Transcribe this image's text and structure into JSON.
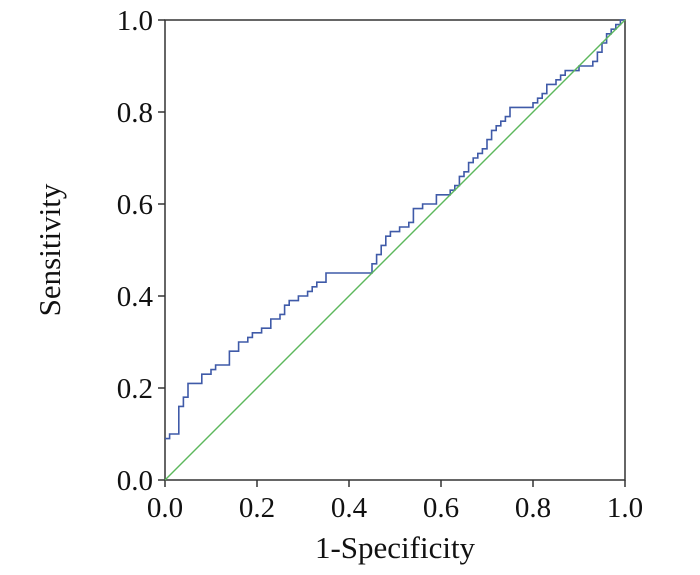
{
  "chart_data": {
    "type": "line",
    "title": "",
    "xlabel": "1-Specificity",
    "ylabel": "Sensitivity",
    "xlim": [
      0,
      1
    ],
    "ylim": [
      0,
      1
    ],
    "xticks": [
      "0.0",
      "0.2",
      "0.4",
      "0.6",
      "0.8",
      "1.0"
    ],
    "yticks": [
      "0.0",
      "0.2",
      "0.4",
      "0.6",
      "0.8",
      "1.0"
    ],
    "grid": false,
    "legend": "none",
    "series": [
      {
        "color": "#3f5aa8",
        "step": true,
        "points": [
          [
            0.0,
            0.09
          ],
          [
            0.01,
            0.09
          ],
          [
            0.01,
            0.1
          ],
          [
            0.03,
            0.1
          ],
          [
            0.03,
            0.16
          ],
          [
            0.04,
            0.18
          ],
          [
            0.05,
            0.21
          ],
          [
            0.07,
            0.21
          ],
          [
            0.08,
            0.23
          ],
          [
            0.1,
            0.24
          ],
          [
            0.11,
            0.25
          ],
          [
            0.13,
            0.25
          ],
          [
            0.14,
            0.28
          ],
          [
            0.16,
            0.3
          ],
          [
            0.18,
            0.31
          ],
          [
            0.19,
            0.32
          ],
          [
            0.21,
            0.33
          ],
          [
            0.23,
            0.35
          ],
          [
            0.25,
            0.36
          ],
          [
            0.26,
            0.38
          ],
          [
            0.27,
            0.39
          ],
          [
            0.29,
            0.4
          ],
          [
            0.31,
            0.41
          ],
          [
            0.32,
            0.42
          ],
          [
            0.33,
            0.43
          ],
          [
            0.35,
            0.45
          ],
          [
            0.43,
            0.45
          ],
          [
            0.45,
            0.47
          ],
          [
            0.46,
            0.49
          ],
          [
            0.47,
            0.51
          ],
          [
            0.48,
            0.53
          ],
          [
            0.49,
            0.54
          ],
          [
            0.51,
            0.55
          ],
          [
            0.53,
            0.56
          ],
          [
            0.54,
            0.59
          ],
          [
            0.56,
            0.6
          ],
          [
            0.58,
            0.6
          ],
          [
            0.59,
            0.62
          ],
          [
            0.61,
            0.62
          ],
          [
            0.62,
            0.63
          ],
          [
            0.63,
            0.64
          ],
          [
            0.64,
            0.66
          ],
          [
            0.65,
            0.67
          ],
          [
            0.66,
            0.69
          ],
          [
            0.67,
            0.7
          ],
          [
            0.68,
            0.71
          ],
          [
            0.69,
            0.72
          ],
          [
            0.7,
            0.74
          ],
          [
            0.71,
            0.76
          ],
          [
            0.72,
            0.77
          ],
          [
            0.73,
            0.78
          ],
          [
            0.74,
            0.79
          ],
          [
            0.75,
            0.81
          ],
          [
            0.77,
            0.81
          ],
          [
            0.8,
            0.82
          ],
          [
            0.81,
            0.83
          ],
          [
            0.82,
            0.84
          ],
          [
            0.83,
            0.86
          ],
          [
            0.85,
            0.87
          ],
          [
            0.86,
            0.88
          ],
          [
            0.87,
            0.89
          ],
          [
            0.88,
            0.89
          ],
          [
            0.9,
            0.9
          ],
          [
            0.92,
            0.9
          ],
          [
            0.93,
            0.91
          ],
          [
            0.94,
            0.93
          ],
          [
            0.95,
            0.95
          ],
          [
            0.96,
            0.97
          ],
          [
            0.97,
            0.98
          ],
          [
            0.98,
            0.99
          ],
          [
            0.99,
            1.0
          ],
          [
            1.0,
            1.0
          ]
        ]
      },
      {
        "color": "#5cb85c",
        "step": false,
        "points": [
          [
            0.0,
            0.0
          ],
          [
            1.0,
            1.0
          ]
        ]
      }
    ]
  }
}
